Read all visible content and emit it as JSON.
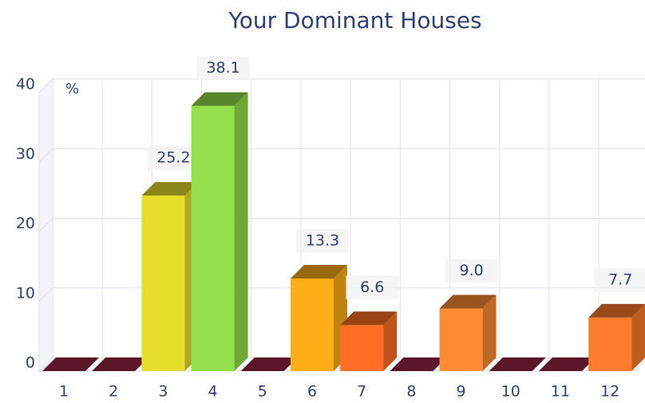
{
  "chart_data": {
    "type": "bar3d",
    "title": "Your Dominant Houses",
    "y_label": "%",
    "categories": [
      "1",
      "2",
      "3",
      "4",
      "5",
      "6",
      "7",
      "8",
      "9",
      "10",
      "11",
      "12"
    ],
    "values": [
      0,
      0,
      25.2,
      38.1,
      0,
      13.3,
      6.6,
      0,
      9.0,
      0,
      0,
      7.7
    ],
    "value_labels": [
      null,
      null,
      "25.2",
      "38.1",
      null,
      "13.3",
      "6.6",
      null,
      "9.0",
      null,
      null,
      "7.7"
    ],
    "colors": [
      "#9a2444",
      "#9a2444",
      "#e6e02a",
      "#95e04a",
      "#9a2444",
      "#ffae18",
      "#ff6e22",
      "#9a2444",
      "#ff8c34",
      "#9a2444",
      "#9a2444",
      "#ff7c2c"
    ],
    "ylim": [
      0,
      40
    ],
    "yticks": [
      0,
      10,
      20,
      30,
      40
    ],
    "grid": true
  }
}
